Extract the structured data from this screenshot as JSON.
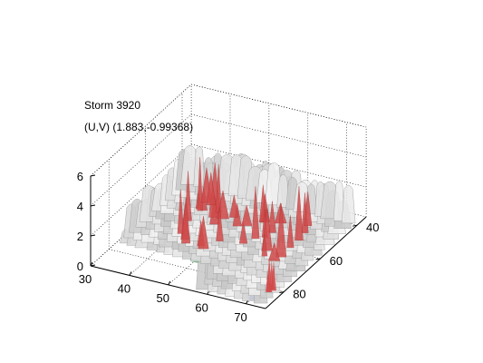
{
  "title": "Storm 3920",
  "subtitle": "(U,V) (1.883,-0.99368)",
  "chart_data": {
    "type": "surface",
    "title": "Storm 3920",
    "annotation": "(U,V) (1.883,-0.99368)",
    "xlabel": "",
    "ylabel": "",
    "zlabel": "",
    "xlim": [
      30,
      75
    ],
    "ylim": [
      35,
      90
    ],
    "zlim": [
      0,
      6
    ],
    "x_ticks": [
      "30",
      "40",
      "50",
      "60",
      "70"
    ],
    "y_ticks": [
      "40",
      "60",
      "80"
    ],
    "z_ticks": [
      "0",
      "2",
      "4",
      "6"
    ],
    "grid": true,
    "colors": {
      "isosurface": "#c8c8c8",
      "core": "#d04a4a",
      "base_green": "#5fae72",
      "base_blue": "#3a5ed0",
      "base_cyan": "#6fc2e0"
    }
  }
}
